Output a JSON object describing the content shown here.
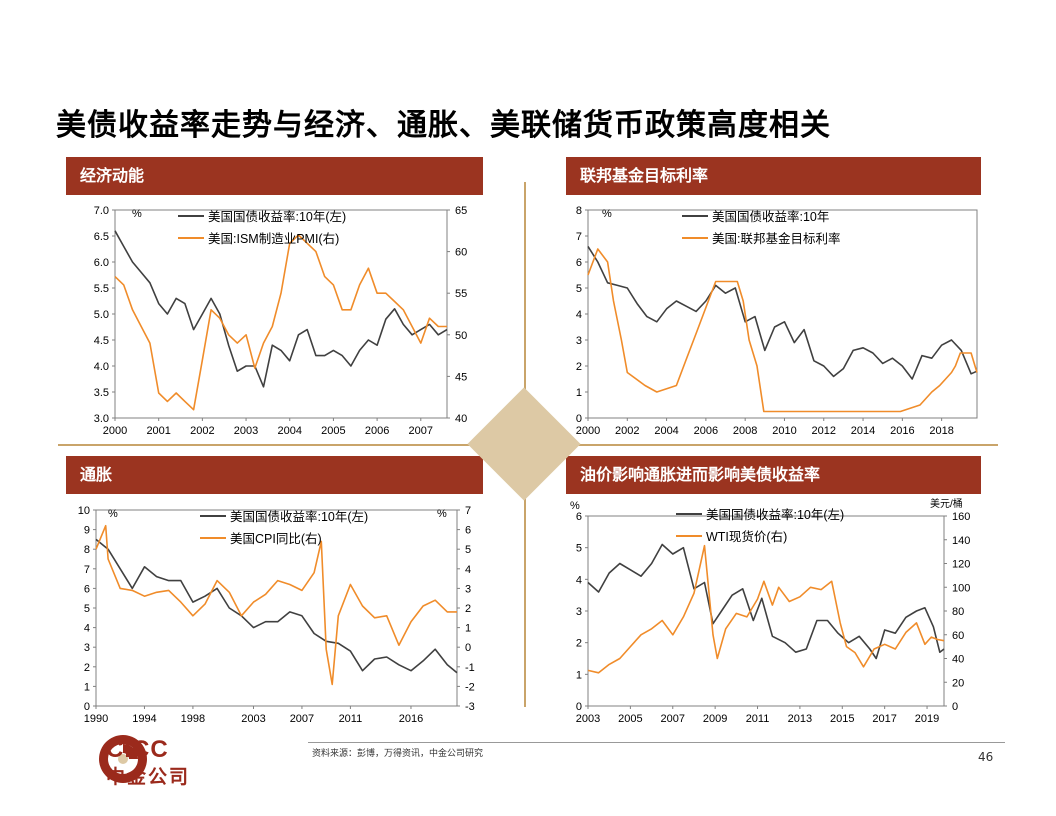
{
  "page": {
    "title": "美债收益率走势与经济、通胀、美联储货币政策高度相关",
    "source": "资料来源：彭博，万得资讯，中金公司研究",
    "page_number": "46",
    "logo_en": "CICC",
    "logo_cn": "中金公司"
  },
  "colors": {
    "header": "#9b3420",
    "series_dark": "#404040",
    "series_orange": "#f08c2a",
    "accent_line": "#c9a46a"
  },
  "chart_data": [
    {
      "id": "econ",
      "type": "line",
      "header": "经济动能",
      "left_unit": "%",
      "right_unit": "",
      "xlim": [
        2000,
        2007.6
      ],
      "ylim_left": [
        3.0,
        7.0
      ],
      "ylim_right": [
        40,
        65
      ],
      "x_ticks": [
        "2000",
        "2001",
        "2002",
        "2003",
        "2004",
        "2005",
        "2006",
        "2007"
      ],
      "y_ticks_left": [
        "3.0",
        "3.5",
        "4.0",
        "4.5",
        "5.0",
        "5.5",
        "6.0",
        "6.5",
        "7.0"
      ],
      "y_ticks_right": [
        "40",
        "45",
        "50",
        "55",
        "60",
        "65"
      ],
      "series": [
        {
          "name": "美国国债收益率:10年(左)",
          "axis": "left",
          "color": "#404040",
          "x": [
            2000.0,
            2000.2,
            2000.4,
            2000.6,
            2000.8,
            2001.0,
            2001.2,
            2001.4,
            2001.6,
            2001.8,
            2002.0,
            2002.2,
            2002.4,
            2002.6,
            2002.8,
            2003.0,
            2003.2,
            2003.4,
            2003.6,
            2003.8,
            2004.0,
            2004.2,
            2004.4,
            2004.6,
            2004.8,
            2005.0,
            2005.2,
            2005.4,
            2005.6,
            2005.8,
            2006.0,
            2006.2,
            2006.4,
            2006.6,
            2006.8,
            2007.0,
            2007.2,
            2007.4,
            2007.6
          ],
          "y": [
            6.6,
            6.3,
            6.0,
            5.8,
            5.6,
            5.2,
            5.0,
            5.3,
            5.2,
            4.7,
            5.0,
            5.3,
            5.0,
            4.4,
            3.9,
            4.0,
            4.0,
            3.6,
            4.4,
            4.3,
            4.1,
            4.6,
            4.7,
            4.2,
            4.2,
            4.3,
            4.2,
            4.0,
            4.3,
            4.5,
            4.4,
            4.9,
            5.1,
            4.8,
            4.6,
            4.7,
            4.8,
            4.6,
            4.7
          ]
        },
        {
          "name": "美国:ISM制造业PMI(右)",
          "axis": "right",
          "color": "#f08c2a",
          "x": [
            2000.0,
            2000.2,
            2000.4,
            2000.6,
            2000.8,
            2001.0,
            2001.2,
            2001.4,
            2001.6,
            2001.8,
            2002.0,
            2002.2,
            2002.4,
            2002.6,
            2002.8,
            2003.0,
            2003.2,
            2003.4,
            2003.6,
            2003.8,
            2004.0,
            2004.2,
            2004.4,
            2004.6,
            2004.8,
            2005.0,
            2005.2,
            2005.4,
            2005.6,
            2005.8,
            2006.0,
            2006.2,
            2006.4,
            2006.6,
            2006.8,
            2007.0,
            2007.2,
            2007.4,
            2007.6
          ],
          "y": [
            57,
            56,
            53,
            51,
            49,
            43,
            42,
            43,
            42,
            41,
            47,
            53,
            52,
            50,
            49,
            50,
            46,
            49,
            51,
            55,
            61,
            62,
            61,
            60,
            57,
            56,
            53,
            53,
            56,
            58,
            55,
            55,
            54,
            53,
            51,
            49,
            52,
            51,
            51
          ]
        }
      ]
    },
    {
      "id": "fed",
      "type": "line",
      "header": "联邦基金目标利率",
      "left_unit": "%",
      "right_unit": "",
      "xlim": [
        2000,
        2019.8
      ],
      "ylim_left": [
        0,
        8
      ],
      "ylim_right": null,
      "x_ticks": [
        "2000",
        "2002",
        "2004",
        "2006",
        "2008",
        "2010",
        "2012",
        "2014",
        "2016",
        "2018"
      ],
      "y_ticks_left": [
        "0",
        "1",
        "2",
        "3",
        "4",
        "5",
        "6",
        "7",
        "8"
      ],
      "y_ticks_right": [],
      "series": [
        {
          "name": "美国国债收益率:10年",
          "axis": "left",
          "color": "#404040",
          "x": [
            2000,
            2000.5,
            2001,
            2001.5,
            2002,
            2002.5,
            2003,
            2003.5,
            2004,
            2004.5,
            2005,
            2005.5,
            2006,
            2006.5,
            2007,
            2007.5,
            2008,
            2008.5,
            2009,
            2009.5,
            2010,
            2010.5,
            2011,
            2011.5,
            2012,
            2012.5,
            2013,
            2013.5,
            2014,
            2014.5,
            2015,
            2015.5,
            2016,
            2016.5,
            2017,
            2017.5,
            2018,
            2018.5,
            2019,
            2019.5,
            2019.8
          ],
          "y": [
            6.6,
            6.0,
            5.2,
            5.1,
            5.0,
            4.4,
            3.9,
            3.7,
            4.2,
            4.5,
            4.3,
            4.1,
            4.5,
            5.1,
            4.8,
            5.0,
            3.7,
            3.9,
            2.6,
            3.5,
            3.7,
            2.9,
            3.4,
            2.2,
            2.0,
            1.6,
            1.9,
            2.6,
            2.7,
            2.5,
            2.1,
            2.3,
            2.0,
            1.5,
            2.4,
            2.3,
            2.8,
            3.0,
            2.6,
            1.7,
            1.8
          ]
        },
        {
          "name": "美国:联邦基金目标利率",
          "axis": "left",
          "color": "#f08c2a",
          "x": [
            2000,
            2000.5,
            2001.0,
            2001.3,
            2001.7,
            2002.0,
            2002.9,
            2003.5,
            2004.5,
            2005.0,
            2005.5,
            2006.0,
            2006.5,
            2007.6,
            2007.9,
            2008.2,
            2008.6,
            2008.95,
            2015.9,
            2016.9,
            2017.2,
            2017.5,
            2017.9,
            2018.2,
            2018.5,
            2018.7,
            2018.95,
            2019.5,
            2019.7,
            2019.8
          ],
          "y": [
            5.5,
            6.5,
            6.0,
            4.5,
            3.0,
            1.75,
            1.25,
            1.0,
            1.25,
            2.25,
            3.25,
            4.25,
            5.25,
            5.25,
            4.5,
            3.0,
            2.0,
            0.25,
            0.25,
            0.5,
            0.75,
            1.0,
            1.25,
            1.5,
            1.75,
            2.0,
            2.5,
            2.5,
            2.0,
            1.75
          ]
        }
      ]
    },
    {
      "id": "cpi",
      "type": "line",
      "header": "通胀",
      "left_unit": "%",
      "right_unit": "%",
      "xlim": [
        1990,
        2019.8
      ],
      "ylim_left": [
        0,
        10
      ],
      "ylim_right": [
        -3,
        7
      ],
      "x_ticks": [
        "1990",
        "1994",
        "1998",
        "2003",
        "2007",
        "2011",
        "2016"
      ],
      "y_ticks_left": [
        "0",
        "1",
        "2",
        "3",
        "4",
        "5",
        "6",
        "7",
        "8",
        "9",
        "10"
      ],
      "y_ticks_right": [
        "-3",
        "-2",
        "-1",
        "0",
        "1",
        "2",
        "3",
        "4",
        "5",
        "6",
        "7"
      ],
      "series": [
        {
          "name": "美国国债收益率:10年(左)",
          "axis": "left",
          "color": "#404040",
          "x": [
            1990,
            1991,
            1992,
            1993,
            1994,
            1995,
            1996,
            1997,
            1998,
            1999,
            2000,
            2001,
            2002,
            2003,
            2004,
            2005,
            2006,
            2007,
            2008,
            2009,
            2010,
            2011,
            2012,
            2013,
            2014,
            2015,
            2016,
            2017,
            2018,
            2019,
            2019.8
          ],
          "y": [
            8.5,
            8.0,
            7.0,
            6.0,
            7.1,
            6.6,
            6.4,
            6.4,
            5.3,
            5.6,
            6.0,
            5.0,
            4.6,
            4.0,
            4.3,
            4.3,
            4.8,
            4.6,
            3.7,
            3.3,
            3.2,
            2.8,
            1.8,
            2.4,
            2.5,
            2.1,
            1.8,
            2.3,
            2.9,
            2.1,
            1.7
          ]
        },
        {
          "name": "美国CPI同比(右)",
          "axis": "right",
          "color": "#f08c2a",
          "x": [
            1990,
            1990.8,
            1991,
            1992,
            1993,
            1994,
            1995,
            1996,
            1997,
            1998,
            1999,
            2000,
            2001,
            2002,
            2003,
            2004,
            2005,
            2006,
            2007,
            2008,
            2008.6,
            2009,
            2009.5,
            2010,
            2011,
            2012,
            2013,
            2014,
            2015,
            2016,
            2017,
            2018,
            2019,
            2019.8
          ],
          "y": [
            5.0,
            6.2,
            4.5,
            3.0,
            2.9,
            2.6,
            2.8,
            2.9,
            2.3,
            1.6,
            2.2,
            3.4,
            2.8,
            1.6,
            2.3,
            2.7,
            3.4,
            3.2,
            2.9,
            3.8,
            5.4,
            -0.1,
            -1.9,
            1.6,
            3.2,
            2.1,
            1.5,
            1.6,
            0.1,
            1.3,
            2.1,
            2.4,
            1.8,
            1.8
          ]
        }
      ]
    },
    {
      "id": "oil",
      "type": "line",
      "header": "油价影响通胀进而影响美债收益率",
      "left_unit": "%",
      "right_unit": "美元/桶",
      "xlim": [
        2003,
        2019.8
      ],
      "ylim_left": [
        0,
        6
      ],
      "ylim_right": [
        0,
        160
      ],
      "x_ticks": [
        "2003",
        "2005",
        "2007",
        "2009",
        "2011",
        "2013",
        "2015",
        "2017",
        "2019"
      ],
      "y_ticks_left": [
        "0",
        "1",
        "2",
        "3",
        "4",
        "5",
        "6"
      ],
      "y_ticks_right": [
        "0",
        "20",
        "40",
        "60",
        "80",
        "100",
        "120",
        "140",
        "160"
      ],
      "series": [
        {
          "name": "美国国债收益率:10年(左)",
          "axis": "left",
          "color": "#404040",
          "x": [
            2003,
            2003.5,
            2004,
            2004.5,
            2005,
            2005.5,
            2006,
            2006.5,
            2007,
            2007.5,
            2008,
            2008.5,
            2008.9,
            2009.3,
            2009.8,
            2010.3,
            2010.8,
            2011.2,
            2011.7,
            2012.3,
            2012.8,
            2013.3,
            2013.8,
            2014.3,
            2014.8,
            2015.3,
            2015.8,
            2016.3,
            2016.6,
            2017,
            2017.5,
            2018,
            2018.5,
            2018.9,
            2019.3,
            2019.6,
            2019.8
          ],
          "y": [
            3.9,
            3.6,
            4.2,
            4.5,
            4.3,
            4.1,
            4.5,
            5.1,
            4.8,
            5.0,
            3.7,
            3.9,
            2.6,
            3.0,
            3.5,
            3.7,
            2.7,
            3.4,
            2.2,
            2.0,
            1.7,
            1.8,
            2.7,
            2.7,
            2.3,
            2.0,
            2.2,
            1.8,
            1.5,
            2.4,
            2.3,
            2.8,
            3.0,
            3.1,
            2.5,
            1.7,
            1.8
          ]
        },
        {
          "name": "WTI现货价(右)",
          "axis": "right",
          "color": "#f08c2a",
          "x": [
            2003,
            2003.5,
            2004,
            2004.5,
            2005,
            2005.5,
            2006,
            2006.5,
            2007,
            2007.5,
            2008,
            2008.5,
            2008.9,
            2009.1,
            2009.5,
            2010,
            2010.5,
            2011,
            2011.3,
            2011.7,
            2012,
            2012.5,
            2013,
            2013.5,
            2014,
            2014.5,
            2014.9,
            2015.2,
            2015.6,
            2016,
            2016.5,
            2017,
            2017.5,
            2018,
            2018.5,
            2018.9,
            2019.2,
            2019.5,
            2019.8
          ],
          "y": [
            30,
            28,
            35,
            40,
            50,
            60,
            65,
            72,
            60,
            75,
            95,
            135,
            60,
            40,
            65,
            78,
            75,
            90,
            105,
            85,
            100,
            88,
            92,
            100,
            98,
            105,
            70,
            50,
            45,
            33,
            48,
            52,
            48,
            62,
            70,
            52,
            58,
            56,
            55
          ]
        }
      ]
    }
  ]
}
